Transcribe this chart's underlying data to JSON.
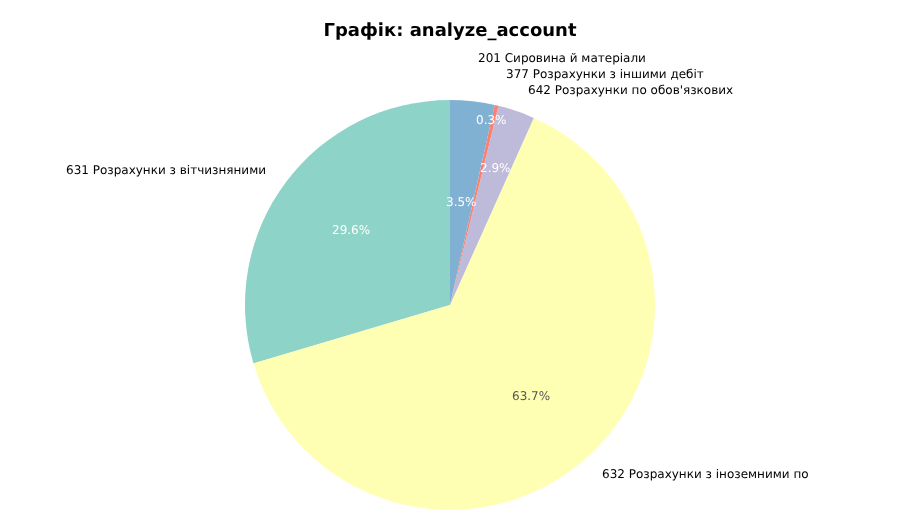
{
  "chart_data": {
    "type": "pie",
    "title": "Графік: analyze_account",
    "categories": [
      "631 Розрахунки з вітчизняними",
      "632 Розрахунки з іноземними по",
      "642 Розрахунки по обов'язкових",
      "377 Розрахунки з іншими дебіт",
      "201 Сировина й матеріали"
    ],
    "values": [
      29.6,
      63.7,
      2.9,
      0.3,
      3.5
    ],
    "value_labels": [
      "29.6%",
      "63.7%",
      "2.9%",
      "0.3%",
      "3.5%"
    ],
    "colors": [
      "#8dd3c7",
      "#ffffb3",
      "#bebada",
      "#fb8072",
      "#80b1d3"
    ]
  }
}
